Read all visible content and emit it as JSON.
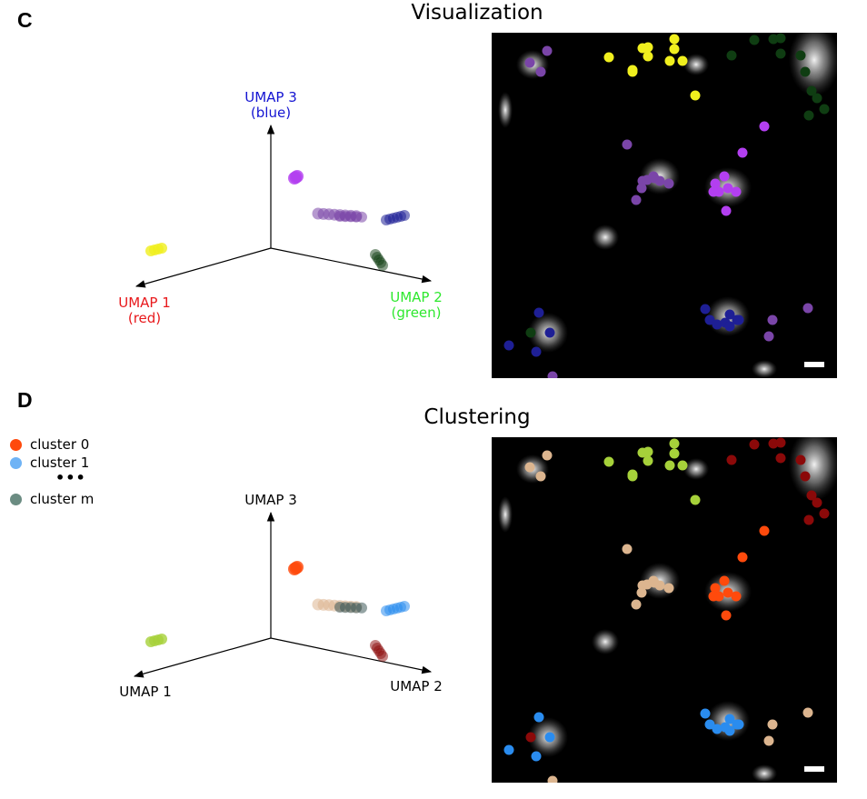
{
  "panel_c": {
    "letter": "C",
    "title": "Visualization",
    "axes": {
      "umap1": {
        "name": "UMAP 1",
        "sub": "(red)",
        "color": "#e8191c"
      },
      "umap2": {
        "name": "UMAP 2",
        "sub": "(green)",
        "color": "#2ee82e"
      },
      "umap3": {
        "name": "UMAP 3",
        "sub": "(blue)",
        "color": "#1414d2"
      }
    }
  },
  "panel_d": {
    "letter": "D",
    "title": "Clustering",
    "axes": {
      "umap1": {
        "name": "UMAP 1"
      },
      "umap2": {
        "name": "UMAP 2"
      },
      "umap3": {
        "name": "UMAP 3"
      }
    },
    "legend": [
      {
        "label": "cluster 0",
        "color": "#ff4a0c"
      },
      {
        "label": "cluster 1",
        "color": "#6fb3f5"
      },
      {
        "label": "•••",
        "color": null
      },
      {
        "label": "cluster m",
        "color": "#6b8c82"
      }
    ]
  },
  "colors": {
    "yellow": "#f0ef1e",
    "purple_light": "#b33ff0",
    "purple_dark": "#7a45a8",
    "navy": "#1e1f95",
    "dark_green": "#0f3d12",
    "lime": "#a6d13a",
    "orange": "#ff4a0c",
    "tan": "#dcb58f",
    "slate": "#3e5a5a",
    "blue": "#2a8cef",
    "dark_red": "#8b0909"
  }
}
